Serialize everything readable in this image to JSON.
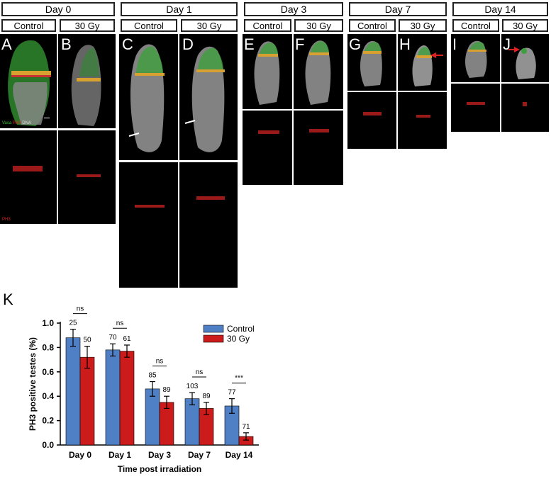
{
  "days": [
    "Day 0",
    "Day 1",
    "Day 3",
    "Day 7",
    "Day 14"
  ],
  "conditions": [
    "Control",
    "30 Gy"
  ],
  "panel_labels": [
    "A",
    "B",
    "C",
    "D",
    "E",
    "F",
    "G",
    "H",
    "I",
    "J"
  ],
  "stain_legend": {
    "vasa": "Vasa",
    "ph3": "PH3",
    "dna": "DNA"
  },
  "ph3_label": "PH3",
  "colors": {
    "vasa": "#3fbf3f",
    "ph3": "#e02020",
    "dna": "#dddddd",
    "control": "#4f7fc4",
    "irradiated": "#cc1b1b"
  },
  "figure_k_label": "K",
  "chart_data": {
    "type": "bar",
    "categories": [
      "Day 0",
      "Day 1",
      "Day 3",
      "Day 7",
      "Day 14"
    ],
    "series": [
      {
        "name": "Control",
        "values": [
          0.88,
          0.78,
          0.46,
          0.38,
          0.32
        ],
        "errors": [
          0.07,
          0.05,
          0.06,
          0.05,
          0.06
        ],
        "n": [
          "25",
          "70",
          "85",
          "103",
          "77"
        ]
      },
      {
        "name": "30 Gy",
        "values": [
          0.72,
          0.77,
          0.35,
          0.3,
          0.07
        ],
        "errors": [
          0.09,
          0.05,
          0.05,
          0.05,
          0.03
        ],
        "n": [
          "50",
          "61",
          "89",
          "89",
          "71"
        ]
      }
    ],
    "significance": [
      "ns",
      "ns",
      "ns",
      "ns",
      "***"
    ],
    "xlabel": "Time post irradiation",
    "ylabel": "PH3 positive testes (%)",
    "ylim": [
      0,
      1.0
    ],
    "yticks": [
      "0.0",
      "0.2",
      "0.4",
      "0.6",
      "0.8",
      "1.0"
    ],
    "legend_position": "top-right"
  }
}
